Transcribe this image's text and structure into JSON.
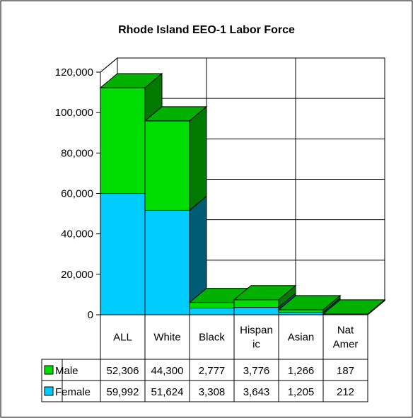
{
  "chart_data": {
    "type": "bar",
    "stacked": true,
    "title": "Rhode Island  EEO-1 Labor Force",
    "categories": [
      "ALL",
      "White",
      "Black",
      "Hispanic",
      "Asian",
      "Nat Amer"
    ],
    "category_label_lines": [
      [
        "ALL"
      ],
      [
        "White"
      ],
      [
        "Black"
      ],
      [
        "Hispan",
        "ic"
      ],
      [
        "Asian"
      ],
      [
        "Nat",
        "Amer"
      ]
    ],
    "series": [
      {
        "name": "Female",
        "values": [
          59992,
          51624,
          3308,
          3643,
          1205,
          212
        ],
        "color": "#00ccff"
      },
      {
        "name": "Male",
        "values": [
          52306,
          44300,
          2777,
          3776,
          1266,
          187
        ],
        "color": "#00dd00"
      }
    ],
    "table_rows": [
      {
        "name": "Male",
        "values": [
          "52,306",
          "44,300",
          "2,777",
          "3,776",
          "1,266",
          "187"
        ]
      },
      {
        "name": "Female",
        "values": [
          "59,992",
          "51,624",
          "3,308",
          "3,643",
          "1,205",
          "212"
        ]
      }
    ],
    "ylim": [
      0,
      120000
    ],
    "yticks": [
      0,
      20000,
      40000,
      60000,
      80000,
      100000,
      120000
    ],
    "ytick_labels": [
      "0",
      "20,000",
      "40,000",
      "60,000",
      "80,000",
      "100,000",
      "120,000"
    ],
    "grid": true,
    "legend": "data-table",
    "chart_style": "3d"
  }
}
